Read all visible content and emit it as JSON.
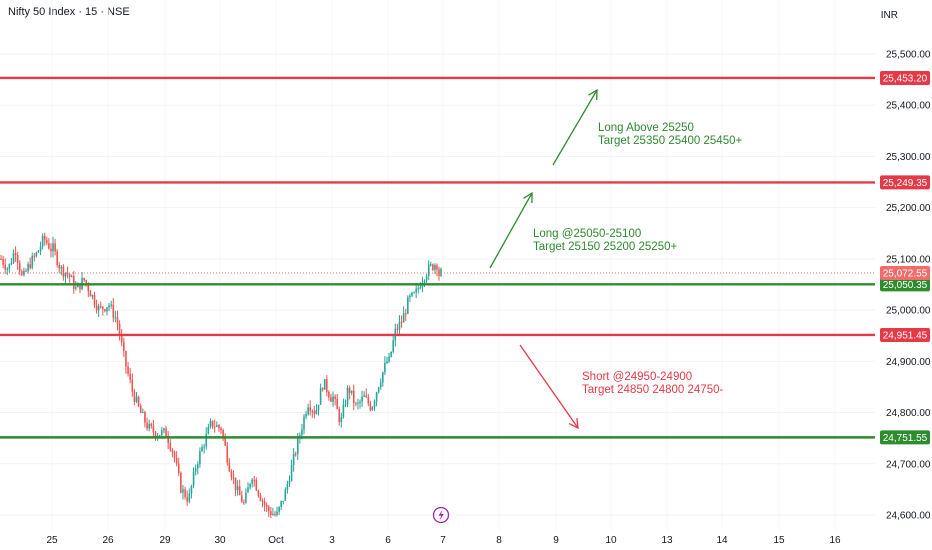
{
  "chart_header": {
    "title": "Nifty 50 Index · 15 · NSE",
    "currency": "INR"
  },
  "colors": {
    "up": "#26a69a",
    "down": "#ef5350",
    "resistance": "#e53946",
    "support": "#2e8b2e",
    "annot_green": "#2e8b2e",
    "annot_red": "#e53946",
    "current": "#f26c6c"
  },
  "chart_data": {
    "type": "candlestick",
    "ylim": [
      24570,
      25560
    ],
    "y_ticks": [
      24600,
      24700,
      24800,
      24900,
      25000,
      25100,
      25200,
      25300,
      25400,
      25500
    ],
    "y_tick_labels": [
      "24,600.00",
      "24,700.00",
      "24,800.00",
      "24,900.00",
      "25,000.00",
      "25,100.00",
      "25,200.00",
      "25,300.00",
      "25,400.00",
      "25,500.00"
    ],
    "x_labels": [
      "25",
      "26",
      "29",
      "30",
      "Oct",
      "3",
      "6",
      "7",
      "8",
      "9",
      "10",
      "13",
      "14",
      "15",
      "16"
    ],
    "levels": [
      {
        "value": 25453.2,
        "label": "25,453.20",
        "kind": "resistance"
      },
      {
        "value": 25249.35,
        "label": "25,249.35",
        "kind": "resistance"
      },
      {
        "value": 25050.35,
        "label": "25,050.35",
        "kind": "support"
      },
      {
        "value": 24951.45,
        "label": "24,951.45",
        "kind": "resistance"
      },
      {
        "value": 24751.55,
        "label": "24,751.55",
        "kind": "support"
      }
    ],
    "current_price": {
      "value": 25072.55,
      "label": "25,072.55"
    },
    "annotations": [
      {
        "lines": [
          "Long Above 25250",
          "Target 25350 25400 25450+"
        ],
        "color": "green"
      },
      {
        "lines": [
          "Long @25050-25100",
          "Target 25150 25200 25250+"
        ],
        "color": "green"
      },
      {
        "lines": [
          "Short @24950-24900",
          "Target 24850 24800 24750-"
        ],
        "color": "red"
      }
    ],
    "series": [
      {
        "day": "24",
        "waypoints": [
          25100,
          25080,
          25120,
          25060,
          25090,
          25110,
          25140,
          25120
        ]
      },
      {
        "day": "25",
        "waypoints": [
          25120,
          25080,
          25070,
          25040,
          25060,
          25030,
          25000,
          25010
        ]
      },
      {
        "day": "26",
        "waypoints": [
          25010,
          24980,
          24900,
          24840,
          24800,
          24770,
          24760,
          24760
        ]
      },
      {
        "day": "29",
        "waypoints": [
          24760,
          24720,
          24650,
          24630,
          24700,
          24740,
          24780,
          24770
        ]
      },
      {
        "day": "30",
        "waypoints": [
          24770,
          24700,
          24650,
          24620,
          24680,
          24640,
          24610,
          24600
        ]
      },
      {
        "day": "Oct",
        "waypoints": [
          24600,
          24640,
          24700,
          24760,
          24820,
          24800,
          24860,
          24830
        ]
      },
      {
        "day": "3",
        "waypoints": [
          24830,
          24780,
          24850,
          24810,
          24830,
          24810,
          24860,
          24900
        ]
      },
      {
        "day": "6",
        "waypoints": [
          24900,
          24960,
          24980,
          25020,
          25030,
          25060,
          25080,
          25090
        ]
      },
      {
        "day": "7",
        "waypoints": [
          25090,
          25060,
          25080,
          25072
        ]
      }
    ]
  }
}
